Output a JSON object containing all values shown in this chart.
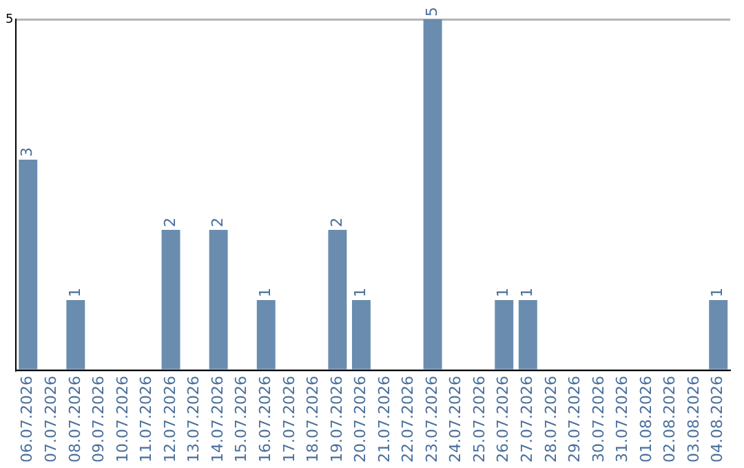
{
  "chart_data": {
    "type": "bar",
    "categories": [
      "06.07.2026",
      "07.07.2026",
      "08.07.2026",
      "09.07.2026",
      "10.07.2026",
      "11.07.2026",
      "12.07.2026",
      "13.07.2026",
      "14.07.2026",
      "15.07.2026",
      "16.07.2026",
      "17.07.2026",
      "18.07.2026",
      "19.07.2026",
      "20.07.2026",
      "21.07.2026",
      "22.07.2026",
      "23.07.2026",
      "24.07.2026",
      "25.07.2026",
      "26.07.2026",
      "27.07.2026",
      "28.07.2026",
      "29.07.2026",
      "30.07.2026",
      "31.07.2026",
      "01.08.2026",
      "02.08.2026",
      "03.08.2026",
      "04.08.2026"
    ],
    "values": [
      3,
      0,
      1,
      0,
      0,
      0,
      2,
      0,
      2,
      0,
      1,
      0,
      0,
      2,
      1,
      0,
      0,
      5,
      0,
      0,
      1,
      1,
      0,
      0,
      0,
      0,
      0,
      0,
      0,
      1
    ],
    "value_labels": [
      "3",
      null,
      "1",
      null,
      null,
      null,
      "2",
      null,
      "2",
      null,
      "1",
      null,
      null,
      "2",
      "1",
      null,
      null,
      "5",
      null,
      null,
      "1",
      "1",
      null,
      null,
      null,
      null,
      null,
      null,
      null,
      "1"
    ],
    "color": "#6a8caf",
    "ylim": [
      0,
      5
    ],
    "yticks": [
      {
        "value": 0,
        "label": null
      },
      5
    ],
    "grid": "y",
    "legend": false
  }
}
